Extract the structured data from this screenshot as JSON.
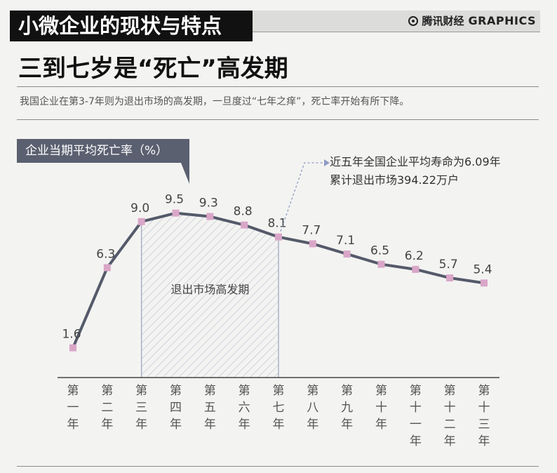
{
  "header": {
    "section_title": "小微企业的现状与特点",
    "brand_cn": "腾讯财经",
    "brand_en": "GRAPHICS",
    "headline": "三到七岁是“死亡”高发期",
    "intro": "我国企业在第3-7年则为退出市场的高发期，一旦度过“七年之痒”，死亡率开始有所下降。"
  },
  "legend_label": "企业当期平均死亡率（%）",
  "callout": {
    "line1": "近五年全国企业平均寿命为6.09年",
    "line2": "累计退出市场394.22万户"
  },
  "shaded_region_label": "退出市场高发期",
  "colors": {
    "line": "#555a6a",
    "marker": "#d9a6c8",
    "label_box": "#5b6070",
    "shade_stroke": "#9aa3bd",
    "callout_arrow": "#8d9bc4"
  },
  "chart_data": {
    "type": "line",
    "title": "",
    "ylabel": "企业当期平均死亡率（%）",
    "categories": [
      "第一年",
      "第二年",
      "第三年",
      "第四年",
      "第五年",
      "第六年",
      "第七年",
      "第八年",
      "第九年",
      "第十年",
      "第十一年",
      "第十二年",
      "第十三年"
    ],
    "values": [
      1.6,
      6.3,
      9.0,
      9.5,
      9.3,
      8.8,
      8.1,
      7.7,
      7.1,
      6.5,
      6.2,
      5.7,
      5.4
    ],
    "value_labels": [
      "1.6",
      "6.3",
      "9.0",
      "9.5",
      "9.3",
      "8.8",
      "8.1",
      "7.7",
      "7.1",
      "6.5",
      "6.2",
      "5.7",
      "5.4"
    ],
    "shaded_range": [
      "第三年",
      "第七年"
    ],
    "grid": false,
    "legend": "top-left"
  }
}
